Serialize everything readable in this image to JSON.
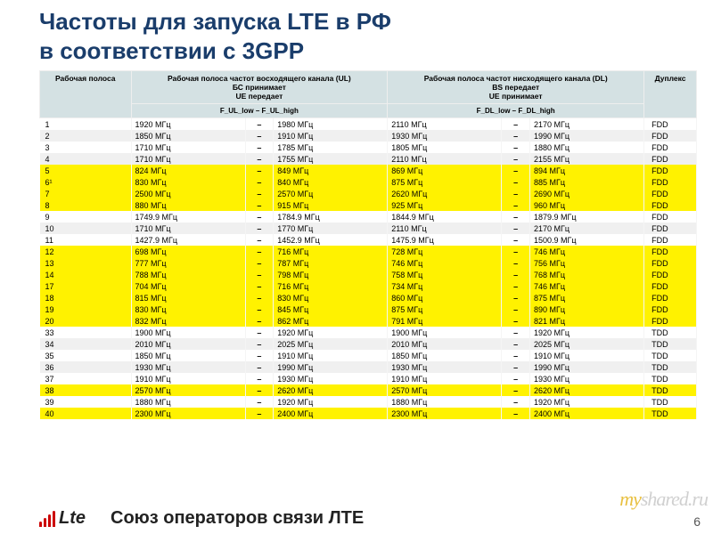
{
  "title_line1": "Частоты для запуска LTE в РФ",
  "title_line2": "в соответствии с 3GPP",
  "columns": {
    "band": "Рабочая полоса",
    "ul": "Рабочая полоса частот восходящего канала (UL)\nБС принимает\nUE передает",
    "dl": "Рабочая полоса частот нисходящего канала (DL)\nBS передает\nUE принимает",
    "duplex": "Дуплекс",
    "ul_sub": "F_UL_low – F_UL_high",
    "dl_sub": "F_DL_low – F_DL_high"
  },
  "unit": "МГц",
  "rows": [
    {
      "b": "1",
      "ul": [
        "1920",
        "1980"
      ],
      "dl": [
        "2110",
        "2170"
      ],
      "d": "FDD",
      "c": "white"
    },
    {
      "b": "2",
      "ul": [
        "1850",
        "1910"
      ],
      "dl": [
        "1930",
        "1990"
      ],
      "d": "FDD",
      "c": "gray"
    },
    {
      "b": "3",
      "ul": [
        "1710",
        "1785"
      ],
      "dl": [
        "1805",
        "1880"
      ],
      "d": "FDD",
      "c": "white"
    },
    {
      "b": "4",
      "ul": [
        "1710",
        "1755"
      ],
      "dl": [
        "2110",
        "2155"
      ],
      "d": "FDD",
      "c": "gray"
    },
    {
      "b": "5",
      "ul": [
        "824",
        "849"
      ],
      "dl": [
        "869",
        "894"
      ],
      "d": "FDD",
      "c": "yellow"
    },
    {
      "b": "6¹",
      "ul": [
        "830",
        "840"
      ],
      "dl": [
        "875",
        "885"
      ],
      "d": "FDD",
      "c": "yellow"
    },
    {
      "b": "7",
      "ul": [
        "2500",
        "2570"
      ],
      "dl": [
        "2620",
        "2690"
      ],
      "d": "FDD",
      "c": "yellow"
    },
    {
      "b": "8",
      "ul": [
        "880",
        "915"
      ],
      "dl": [
        "925",
        "960"
      ],
      "d": "FDD",
      "c": "yellow"
    },
    {
      "b": "9",
      "ul": [
        "1749.9",
        "1784.9"
      ],
      "dl": [
        "1844.9",
        "1879.9"
      ],
      "d": "FDD",
      "c": "white"
    },
    {
      "b": "10",
      "ul": [
        "1710",
        "1770"
      ],
      "dl": [
        "2110",
        "2170"
      ],
      "d": "FDD",
      "c": "gray"
    },
    {
      "b": "11",
      "ul": [
        "1427.9",
        "1452.9"
      ],
      "dl": [
        "1475.9",
        "1500.9"
      ],
      "d": "FDD",
      "c": "white"
    },
    {
      "b": "12",
      "ul": [
        "698",
        "716"
      ],
      "dl": [
        "728",
        "746"
      ],
      "d": "FDD",
      "c": "yellow"
    },
    {
      "b": "13",
      "ul": [
        "777",
        "787"
      ],
      "dl": [
        "746",
        "756"
      ],
      "d": "FDD",
      "c": "yellow"
    },
    {
      "b": "14",
      "ul": [
        "788",
        "798"
      ],
      "dl": [
        "758",
        "768"
      ],
      "d": "FDD",
      "c": "yellow"
    },
    {
      "b": "17",
      "ul": [
        "704",
        "716"
      ],
      "dl": [
        "734",
        "746"
      ],
      "d": "FDD",
      "c": "yellow"
    },
    {
      "b": "18",
      "ul": [
        "815",
        "830"
      ],
      "dl": [
        "860",
        "875"
      ],
      "d": "FDD",
      "c": "yellow"
    },
    {
      "b": "19",
      "ul": [
        "830",
        "845"
      ],
      "dl": [
        "875",
        "890"
      ],
      "d": "FDD",
      "c": "yellow"
    },
    {
      "b": "20",
      "ul": [
        "832",
        "862"
      ],
      "dl": [
        "791",
        "821"
      ],
      "d": "FDD",
      "c": "yellow"
    },
    {
      "b": "33",
      "ul": [
        "1900",
        "1920"
      ],
      "dl": [
        "1900",
        "1920"
      ],
      "d": "TDD",
      "c": "white"
    },
    {
      "b": "34",
      "ul": [
        "2010",
        "2025"
      ],
      "dl": [
        "2010",
        "2025"
      ],
      "d": "TDD",
      "c": "gray"
    },
    {
      "b": "35",
      "ul": [
        "1850",
        "1910"
      ],
      "dl": [
        "1850",
        "1910"
      ],
      "d": "TDD",
      "c": "white"
    },
    {
      "b": "36",
      "ul": [
        "1930",
        "1990"
      ],
      "dl": [
        "1930",
        "1990"
      ],
      "d": "TDD",
      "c": "gray"
    },
    {
      "b": "37",
      "ul": [
        "1910",
        "1930"
      ],
      "dl": [
        "1910",
        "1930"
      ],
      "d": "TDD",
      "c": "white"
    },
    {
      "b": "38",
      "ul": [
        "2570",
        "2620"
      ],
      "dl": [
        "2570",
        "2620"
      ],
      "d": "TDD",
      "c": "yellow"
    },
    {
      "b": "39",
      "ul": [
        "1880",
        "1920"
      ],
      "dl": [
        "1880",
        "1920"
      ],
      "d": "TDD",
      "c": "white"
    },
    {
      "b": "40",
      "ul": [
        "2300",
        "2400"
      ],
      "dl": [
        "2300",
        "2400"
      ],
      "d": "TDD",
      "c": "yellow"
    }
  ],
  "logo_text": "Lte",
  "footer_title": "Союз операторов связи ЛТЕ",
  "watermark": {
    "my": "my",
    "shared": "shared.ru"
  },
  "page_number": "6",
  "colors": {
    "title": "#1a3d6b",
    "header_bg": "#d4e1e3",
    "yellow": "#fff200",
    "gray": "#f0f0f0"
  },
  "font_sizes": {
    "title": 26,
    "table": 9,
    "footer": 20
  }
}
